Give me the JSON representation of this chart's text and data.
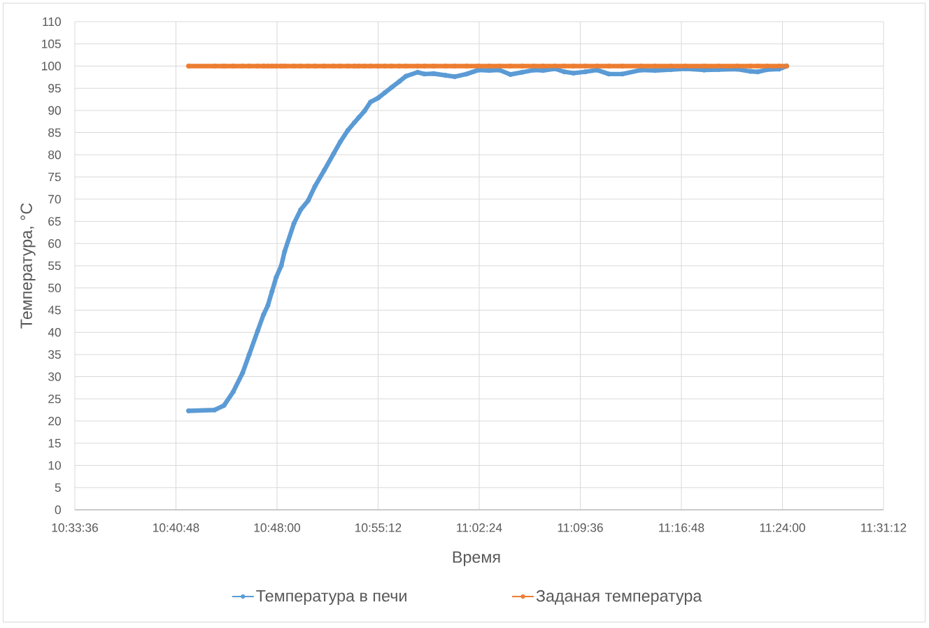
{
  "chart_data": {
    "type": "line",
    "xlabel": "Время",
    "ylabel": "Температура, °C",
    "x": [
      10.695,
      10.726,
      10.737,
      10.748,
      10.759,
      10.767,
      10.777,
      10.784,
      10.789,
      10.794,
      10.799,
      10.805,
      10.809,
      10.82,
      10.828,
      10.837,
      10.845,
      10.856,
      10.867,
      10.875,
      10.884,
      10.892,
      10.897,
      10.904,
      10.911,
      10.92,
      10.928,
      10.936,
      10.945,
      10.953,
      10.967,
      10.975,
      10.986,
      11.0,
      11.011,
      11.025,
      11.039,
      11.052,
      11.064,
      11.077,
      11.091,
      11.105,
      11.116,
      11.13,
      11.141,
      11.152,
      11.166,
      11.18,
      11.194,
      11.21,
      11.232,
      11.249,
      11.268,
      11.285,
      11.307,
      11.324,
      11.346,
      11.362,
      11.371,
      11.382,
      11.396,
      11.405
    ],
    "series": [
      {
        "name": "Температура в печи",
        "color": "#5b9bd5",
        "values": [
          22.3,
          22.5,
          23.5,
          26.6,
          30.8,
          35.0,
          40.3,
          44.0,
          46.0,
          49.2,
          52.4,
          55.0,
          58.2,
          64.5,
          67.6,
          69.7,
          72.9,
          76.5,
          80.2,
          82.9,
          85.5,
          87.3,
          88.4,
          89.9,
          91.9,
          92.8,
          94.0,
          95.2,
          96.5,
          97.7,
          98.6,
          98.2,
          98.3,
          97.9,
          97.6,
          98.2,
          99.1,
          99.0,
          99.1,
          98.1,
          98.6,
          99.1,
          99.0,
          99.4,
          98.7,
          98.4,
          98.7,
          99.1,
          98.2,
          98.2,
          99.1,
          99.0,
          99.2,
          99.4,
          99.1,
          99.2,
          99.3,
          98.8,
          98.7,
          99.2,
          99.3,
          100.0
        ]
      },
      {
        "name": "Заданая температура",
        "color": "#ed7d31",
        "values": [
          100,
          100,
          100,
          100,
          100,
          100,
          100,
          100,
          100,
          100,
          100,
          100,
          100,
          100,
          100,
          100,
          100,
          100,
          100,
          100,
          100,
          100,
          100,
          100,
          100,
          100,
          100,
          100,
          100,
          100,
          100,
          100,
          100,
          100,
          100,
          100,
          100,
          100,
          100,
          100,
          100,
          100,
          100,
          100,
          100,
          100,
          100,
          100,
          100,
          100,
          100,
          100,
          100,
          100,
          100,
          100,
          100,
          100,
          100,
          100,
          100,
          100
        ]
      }
    ],
    "xlim": [
      10.56,
      11.52
    ],
    "xticks": [
      {
        "value": 10.56,
        "label": "10:33:36"
      },
      {
        "value": 10.68,
        "label": "10:40:48"
      },
      {
        "value": 10.8,
        "label": "10:48:00"
      },
      {
        "value": 10.92,
        "label": "10:55:12"
      },
      {
        "value": 11.04,
        "label": "11:02:24"
      },
      {
        "value": 11.16,
        "label": "11:09:36"
      },
      {
        "value": 11.28,
        "label": "11:16:48"
      },
      {
        "value": 11.4,
        "label": "11:24:00"
      },
      {
        "value": 11.52,
        "label": "11:31:12"
      }
    ],
    "ylim": [
      0,
      110
    ],
    "yticks": [
      0,
      5,
      10,
      15,
      20,
      25,
      30,
      35,
      40,
      45,
      50,
      55,
      60,
      65,
      70,
      75,
      80,
      85,
      90,
      95,
      100,
      105,
      110
    ],
    "grid": true,
    "legend": "bottom",
    "marker": "circle"
  }
}
